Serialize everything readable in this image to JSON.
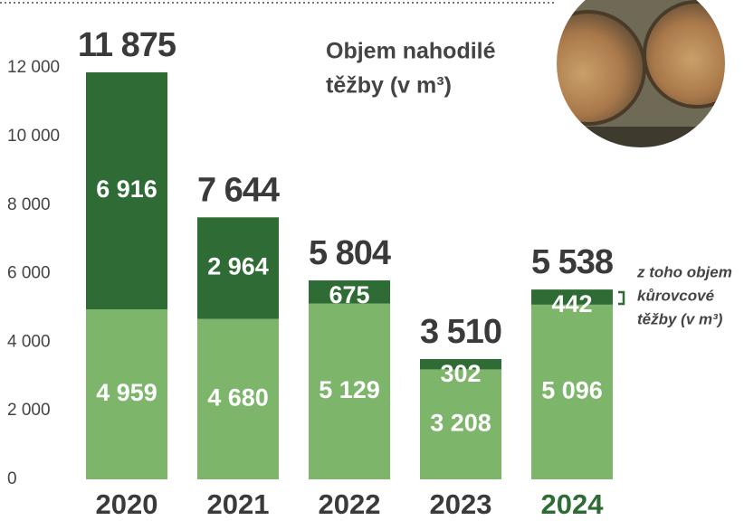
{
  "chart_data": {
    "type": "stacked_bar",
    "title_lines": [
      "Objem nahodilé",
      "těžby (v m³)"
    ],
    "annotation_lines": [
      "z toho objem",
      "kůrovcové",
      "těžby (v m³)"
    ],
    "categories": [
      "2020",
      "2021",
      "2022",
      "2023",
      "2024"
    ],
    "category_label_colors": [
      "#3a3a3a",
      "#3a3a3a",
      "#3a3a3a",
      "#3a3a3a",
      "#2e6b35"
    ],
    "series": [
      {
        "color": "#7db56b",
        "values": [
          4959,
          4680,
          5129,
          3208,
          5096
        ],
        "value_labels": [
          "4 959",
          "4 680",
          "5 129",
          "3 208",
          "5 096"
        ]
      },
      {
        "color": "#2e6b35",
        "values": [
          6916,
          2964,
          675,
          302,
          442
        ],
        "value_labels": [
          "6 916",
          "2 964",
          "675",
          "302",
          "442"
        ]
      }
    ],
    "totals": [
      11875,
      7644,
      5804,
      3510,
      5538
    ],
    "total_labels": [
      "11 875",
      "7 644",
      "5 804",
      "3 510",
      "5 538"
    ],
    "ylim": [
      0,
      13800
    ],
    "yticks": [
      0,
      {
        "value": 2000,
        "label": "2 000"
      },
      {
        "value": 4000,
        "label": "4 000"
      },
      {
        "value": 6000,
        "label": "6 000"
      },
      {
        "value": 8000,
        "label": "8 000"
      },
      {
        "value": 10000,
        "label": "10 000"
      },
      {
        "value": 12000,
        "label": "12 000"
      }
    ]
  }
}
